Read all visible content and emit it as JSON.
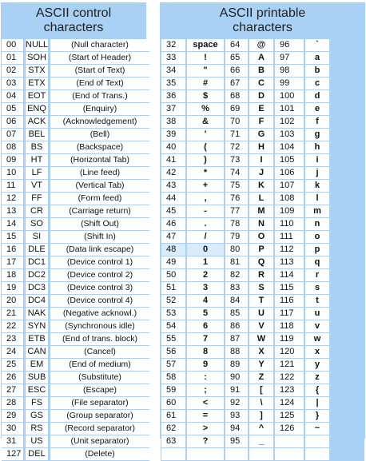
{
  "control": {
    "title_line1": "ASCII control",
    "title_line2": "characters",
    "rows": [
      [
        "00",
        "NULL",
        "(Null character)"
      ],
      [
        "01",
        "SOH",
        "(Start of Header)"
      ],
      [
        "02",
        "STX",
        "(Start of Text)"
      ],
      [
        "03",
        "ETX",
        "(End of Text)"
      ],
      [
        "04",
        "EOT",
        "(End of Trans.)"
      ],
      [
        "05",
        "ENQ",
        "(Enquiry)"
      ],
      [
        "06",
        "ACK",
        "(Acknowledgement)"
      ],
      [
        "07",
        "BEL",
        "(Bell)"
      ],
      [
        "08",
        "BS",
        "(Backspace)"
      ],
      [
        "09",
        "HT",
        "(Horizontal Tab)"
      ],
      [
        "10",
        "LF",
        "(Line feed)"
      ],
      [
        "11",
        "VT",
        "(Vertical Tab)"
      ],
      [
        "12",
        "FF",
        "(Form feed)"
      ],
      [
        "13",
        "CR",
        "(Carriage return)"
      ],
      [
        "14",
        "SO",
        "(Shift Out)"
      ],
      [
        "15",
        "SI",
        "(Shift In)"
      ],
      [
        "16",
        "DLE",
        "(Data link escape)"
      ],
      [
        "17",
        "DC1",
        "(Device control 1)"
      ],
      [
        "18",
        "DC2",
        "(Device control 2)"
      ],
      [
        "19",
        "DC3",
        "(Device control 3)"
      ],
      [
        "20",
        "DC4",
        "(Device control 4)"
      ],
      [
        "21",
        "NAK",
        "(Negative acknowl.)"
      ],
      [
        "22",
        "SYN",
        "(Synchronous idle)"
      ],
      [
        "23",
        "ETB",
        "(End of trans. block)"
      ],
      [
        "24",
        "CAN",
        "(Cancel)"
      ],
      [
        "25",
        "EM",
        "(End of medium)"
      ],
      [
        "26",
        "SUB",
        "(Substitute)"
      ],
      [
        "27",
        "ESC",
        "(Escape)"
      ],
      [
        "28",
        "FS",
        "(File separator)"
      ],
      [
        "29",
        "GS",
        "(Group separator)"
      ],
      [
        "30",
        "RS",
        "(Record separator)"
      ],
      [
        "31",
        "US",
        "(Unit separator)"
      ],
      [
        "127",
        "DEL",
        "(Delete)"
      ]
    ]
  },
  "printable": {
    "title_line1": "ASCII printable",
    "title_line2": "characters",
    "highlighted_code": "48",
    "columns": [
      [
        [
          "32",
          "space"
        ],
        [
          "33",
          "!"
        ],
        [
          "34",
          "\""
        ],
        [
          "35",
          "#"
        ],
        [
          "36",
          "$"
        ],
        [
          "37",
          "%"
        ],
        [
          "38",
          "&"
        ],
        [
          "39",
          "'"
        ],
        [
          "40",
          "("
        ],
        [
          "41",
          ")"
        ],
        [
          "42",
          "*"
        ],
        [
          "43",
          "+"
        ],
        [
          "44",
          ","
        ],
        [
          "45",
          "-"
        ],
        [
          "46",
          "."
        ],
        [
          "47",
          "/"
        ],
        [
          "48",
          "0"
        ],
        [
          "49",
          "1"
        ],
        [
          "50",
          "2"
        ],
        [
          "51",
          "3"
        ],
        [
          "52",
          "4"
        ],
        [
          "53",
          "5"
        ],
        [
          "54",
          "6"
        ],
        [
          "55",
          "7"
        ],
        [
          "56",
          "8"
        ],
        [
          "57",
          "9"
        ],
        [
          "58",
          ":"
        ],
        [
          "59",
          ";"
        ],
        [
          "60",
          "<"
        ],
        [
          "61",
          "="
        ],
        [
          "62",
          ">"
        ],
        [
          "63",
          "?"
        ]
      ],
      [
        [
          "64",
          "@"
        ],
        [
          "65",
          "A"
        ],
        [
          "66",
          "B"
        ],
        [
          "67",
          "C"
        ],
        [
          "68",
          "D"
        ],
        [
          "69",
          "E"
        ],
        [
          "70",
          "F"
        ],
        [
          "71",
          "G"
        ],
        [
          "72",
          "H"
        ],
        [
          "73",
          "I"
        ],
        [
          "74",
          "J"
        ],
        [
          "75",
          "K"
        ],
        [
          "76",
          "L"
        ],
        [
          "77",
          "M"
        ],
        [
          "78",
          "N"
        ],
        [
          "79",
          "O"
        ],
        [
          "80",
          "P"
        ],
        [
          "81",
          "Q"
        ],
        [
          "82",
          "R"
        ],
        [
          "83",
          "S"
        ],
        [
          "84",
          "T"
        ],
        [
          "85",
          "U"
        ],
        [
          "86",
          "V"
        ],
        [
          "87",
          "W"
        ],
        [
          "88",
          "X"
        ],
        [
          "89",
          "Y"
        ],
        [
          "90",
          "Z"
        ],
        [
          "91",
          "["
        ],
        [
          "92",
          "\\"
        ],
        [
          "93",
          "]"
        ],
        [
          "94",
          "^"
        ],
        [
          "95",
          "_"
        ]
      ],
      [
        [
          "96",
          "`"
        ],
        [
          "97",
          "a"
        ],
        [
          "98",
          "b"
        ],
        [
          "99",
          "c"
        ],
        [
          "100",
          "d"
        ],
        [
          "101",
          "e"
        ],
        [
          "102",
          "f"
        ],
        [
          "103",
          "g"
        ],
        [
          "104",
          "h"
        ],
        [
          "105",
          "i"
        ],
        [
          "106",
          "j"
        ],
        [
          "107",
          "k"
        ],
        [
          "108",
          "l"
        ],
        [
          "109",
          "m"
        ],
        [
          "110",
          "n"
        ],
        [
          "111",
          "o"
        ],
        [
          "112",
          "p"
        ],
        [
          "113",
          "q"
        ],
        [
          "114",
          "r"
        ],
        [
          "115",
          "s"
        ],
        [
          "116",
          "t"
        ],
        [
          "117",
          "u"
        ],
        [
          "118",
          "v"
        ],
        [
          "119",
          "w"
        ],
        [
          "120",
          "x"
        ],
        [
          "121",
          "y"
        ],
        [
          "122",
          "z"
        ],
        [
          "123",
          "{"
        ],
        [
          "124",
          "|"
        ],
        [
          "125",
          "}"
        ],
        [
          "126",
          "~"
        ]
      ]
    ]
  },
  "colors": {
    "panel_bg": "#a9d1f5",
    "cell_bg": "#ffffff",
    "highlight_bg": "#d8ecfb"
  }
}
